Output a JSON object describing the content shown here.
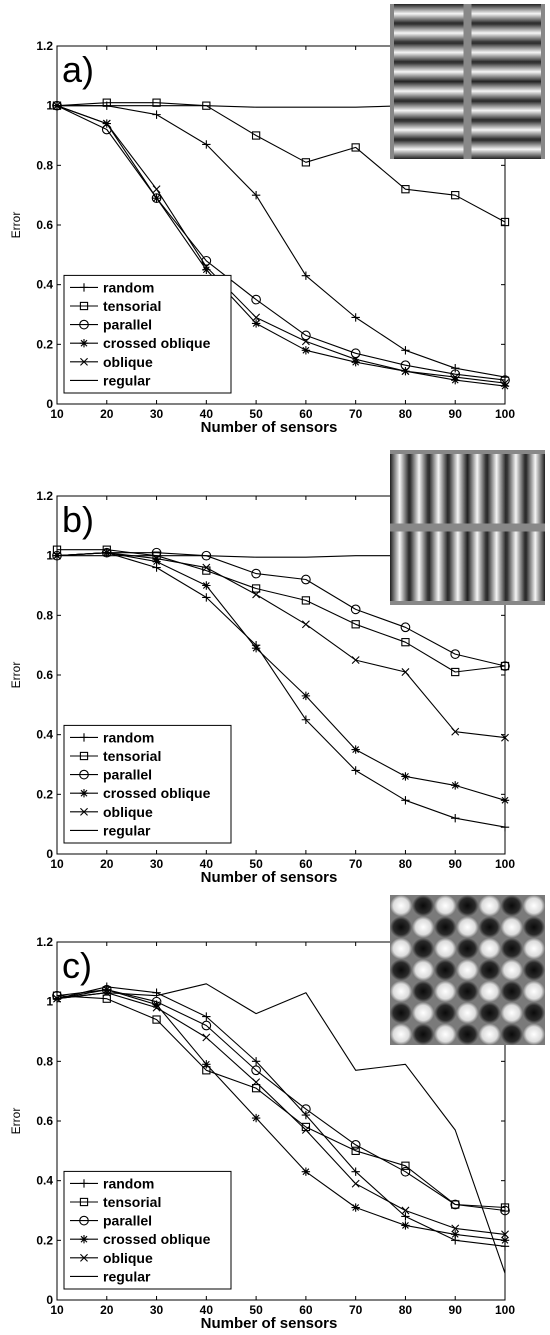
{
  "chart_data": [
    {
      "type": "line",
      "panel_label": "a)",
      "xlabel": "Number of sensors",
      "ylabel": "Error",
      "xlim": [
        10,
        100
      ],
      "ylim": [
        0,
        1.2
      ],
      "x": [
        10,
        20,
        30,
        40,
        50,
        60,
        70,
        80,
        90,
        100
      ],
      "xticks": [
        "10",
        "20",
        "30",
        "40",
        "50",
        "60",
        "70",
        "80",
        "90",
        "100"
      ],
      "yticks": [
        "0",
        "0.2",
        "0.4",
        "0.6",
        "0.8",
        "1",
        "1.2"
      ],
      "legend_position": "bottom-left",
      "grid": false,
      "inset_pattern": "horizontal-bands",
      "series": [
        {
          "name": "random",
          "marker": "plus",
          "values": [
            1.0,
            1.0,
            0.97,
            0.87,
            0.7,
            0.43,
            0.29,
            0.18,
            0.12,
            0.09
          ]
        },
        {
          "name": "tensorial",
          "marker": "square",
          "values": [
            1.0,
            1.01,
            1.01,
            1.0,
            0.9,
            0.81,
            0.86,
            0.72,
            0.7,
            0.61
          ]
        },
        {
          "name": "parallel",
          "marker": "circle",
          "values": [
            1.0,
            0.92,
            0.69,
            0.48,
            0.35,
            0.23,
            0.17,
            0.13,
            0.1,
            0.08
          ]
        },
        {
          "name": "crossed oblique",
          "marker": "asterisk",
          "values": [
            1.0,
            0.94,
            0.69,
            0.45,
            0.27,
            0.18,
            0.14,
            0.11,
            0.08,
            0.06
          ]
        },
        {
          "name": "oblique",
          "marker": "x",
          "values": [
            1.0,
            0.94,
            0.72,
            0.46,
            0.29,
            0.21,
            0.15,
            0.11,
            0.09,
            0.07
          ]
        },
        {
          "name": "regular",
          "marker": "none",
          "values": [
            1.0,
            1.0,
            1.0,
            1.0,
            0.995,
            0.995,
            0.995,
            1.0,
            1.0,
            1.0
          ]
        }
      ]
    },
    {
      "type": "line",
      "panel_label": "b)",
      "xlabel": "Number of sensors",
      "ylabel": "Error",
      "xlim": [
        10,
        100
      ],
      "ylim": [
        0,
        1.2
      ],
      "x": [
        10,
        20,
        30,
        40,
        50,
        60,
        70,
        80,
        90,
        100
      ],
      "xticks": [
        "10",
        "20",
        "30",
        "40",
        "50",
        "60",
        "70",
        "80",
        "90",
        "100"
      ],
      "yticks": [
        "0",
        "0.2",
        "0.4",
        "0.6",
        "0.8",
        "1",
        "1.2"
      ],
      "legend_position": "bottom-left",
      "grid": false,
      "inset_pattern": "vertical-bands",
      "series": [
        {
          "name": "random",
          "marker": "plus",
          "values": [
            1.0,
            1.01,
            0.96,
            0.86,
            0.7,
            0.45,
            0.28,
            0.18,
            0.12,
            0.09
          ]
        },
        {
          "name": "tensorial",
          "marker": "square",
          "values": [
            1.02,
            1.02,
            1.0,
            0.95,
            0.89,
            0.85,
            0.77,
            0.71,
            0.61,
            0.63
          ]
        },
        {
          "name": "parallel",
          "marker": "circle",
          "values": [
            1.0,
            1.01,
            1.01,
            1.0,
            0.94,
            0.92,
            0.82,
            0.76,
            0.67,
            0.63
          ]
        },
        {
          "name": "crossed oblique",
          "marker": "asterisk",
          "values": [
            1.0,
            1.01,
            0.98,
            0.9,
            0.69,
            0.53,
            0.35,
            0.26,
            0.23,
            0.18
          ]
        },
        {
          "name": "oblique",
          "marker": "x",
          "values": [
            1.0,
            1.01,
            0.99,
            0.96,
            0.87,
            0.77,
            0.65,
            0.61,
            0.41,
            0.39
          ]
        },
        {
          "name": "regular",
          "marker": "none",
          "values": [
            1.0,
            1.0,
            1.0,
            1.0,
            0.995,
            0.995,
            1.0,
            1.0,
            1.0,
            1.0
          ]
        }
      ]
    },
    {
      "type": "line",
      "panel_label": "c)",
      "xlabel": "Number of sensors",
      "ylabel": "Error",
      "xlim": [
        10,
        100
      ],
      "ylim": [
        0,
        1.2
      ],
      "x": [
        10,
        20,
        30,
        40,
        50,
        60,
        70,
        80,
        90,
        100
      ],
      "xticks": [
        "10",
        "20",
        "30",
        "40",
        "50",
        "60",
        "70",
        "80",
        "90",
        "100"
      ],
      "yticks": [
        "0",
        "0.2",
        "0.4",
        "0.6",
        "0.8",
        "1",
        "1.2"
      ],
      "legend_position": "bottom-left",
      "grid": false,
      "inset_pattern": "checkerboard",
      "series": [
        {
          "name": "random",
          "marker": "plus",
          "values": [
            1.01,
            1.05,
            1.03,
            0.95,
            0.8,
            0.62,
            0.43,
            0.28,
            0.2,
            0.18
          ]
        },
        {
          "name": "tensorial",
          "marker": "square",
          "values": [
            1.02,
            1.01,
            0.94,
            0.77,
            0.71,
            0.58,
            0.5,
            0.45,
            0.32,
            0.31
          ]
        },
        {
          "name": "parallel",
          "marker": "circle",
          "values": [
            1.02,
            1.04,
            1.0,
            0.92,
            0.77,
            0.64,
            0.52,
            0.43,
            0.32,
            0.3
          ]
        },
        {
          "name": "crossed oblique",
          "marker": "asterisk",
          "values": [
            1.01,
            1.04,
            0.99,
            0.79,
            0.61,
            0.43,
            0.31,
            0.25,
            0.22,
            0.2
          ]
        },
        {
          "name": "oblique",
          "marker": "x",
          "values": [
            1.01,
            1.03,
            0.98,
            0.88,
            0.73,
            0.57,
            0.39,
            0.3,
            0.24,
            0.22
          ]
        },
        {
          "name": "regular",
          "marker": "none",
          "values": [
            1.01,
            1.03,
            1.02,
            1.06,
            0.96,
            1.03,
            0.77,
            0.79,
            0.57,
            0.09
          ]
        }
      ]
    }
  ]
}
